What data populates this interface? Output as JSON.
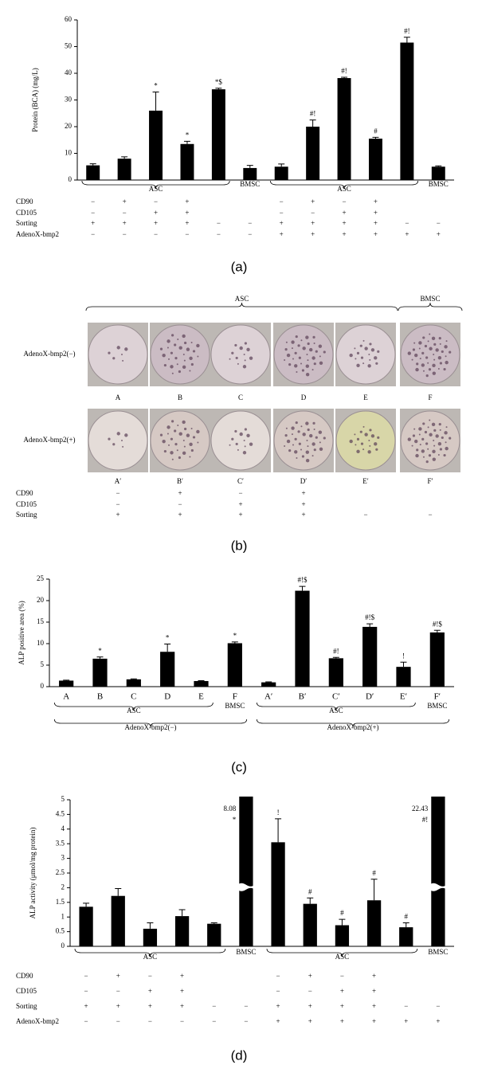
{
  "chart_data": [
    {
      "type": "bar",
      "y_label": "Protein (BCA) (mg/L)",
      "caption": "(a)",
      "categories": [
        null,
        null,
        null,
        null,
        null,
        null,
        null,
        null,
        null,
        null,
        null,
        null
      ],
      "values": [
        5.5,
        8,
        26,
        13.5,
        34,
        4.5,
        5,
        20,
        38.2,
        15.5,
        51.5,
        5
      ],
      "errors": [
        0.6,
        0.7,
        7,
        1,
        0.4,
        1,
        1,
        2.5,
        0.3,
        0.5,
        2,
        0.3
      ],
      "annotations": [
        null,
        null,
        "*",
        "*",
        "*$",
        null,
        null,
        "#!",
        "#!",
        "#",
        "#!",
        null
      ],
      "color": "#000000",
      "ylim": [
        0,
        60
      ],
      "yticks": [
        0,
        10,
        20,
        30,
        40,
        50,
        60
      ],
      "groups": [
        {
          "label": "ASC",
          "span": [
            0,
            4
          ]
        },
        {
          "label": "BMSC",
          "span": [
            5,
            5
          ]
        },
        {
          "label": "ASC",
          "span": [
            6,
            10
          ]
        },
        {
          "label": "BMSC",
          "span": [
            11,
            11
          ]
        }
      ],
      "conditions": [
        {
          "label": "CD90",
          "values": [
            "−",
            "+",
            "−",
            "+",
            null,
            null,
            "−",
            "+",
            "−",
            "+",
            null,
            null
          ]
        },
        {
          "label": "CD105",
          "values": [
            "−",
            "−",
            "+",
            "+",
            null,
            null,
            "−",
            "−",
            "+",
            "+",
            null,
            null
          ]
        },
        {
          "label": "Sorting",
          "values": [
            "+",
            "+",
            "+",
            "+",
            "−",
            "−",
            "+",
            "+",
            "+",
            "+",
            "−",
            "−"
          ]
        },
        {
          "label": "AdenoX-bmp2",
          "values": [
            "−",
            "−",
            "−",
            "−",
            "−",
            "−",
            "+",
            "+",
            "+",
            "+",
            "+",
            "+"
          ]
        }
      ]
    },
    {
      "type": "bar",
      "y_label": "ALP positive area (%)",
      "caption": "(c)",
      "categories": [
        "A",
        "B",
        "C",
        "D",
        "E",
        "F",
        "A′",
        "B′",
        "C′",
        "D′",
        "E′",
        "F′"
      ],
      "values": [
        1.4,
        6.5,
        1.7,
        8.1,
        1.3,
        10.1,
        1.0,
        22.3,
        6.6,
        13.9,
        4.6,
        12.6
      ],
      "errors": [
        0.1,
        0.4,
        0.1,
        1.8,
        0.1,
        0.3,
        0.1,
        1.0,
        0.2,
        0.7,
        1.1,
        0.5
      ],
      "annotations": [
        null,
        "*",
        null,
        "*",
        null,
        "*",
        null,
        "#!$",
        "#!",
        "#!$",
        "!",
        "#!$"
      ],
      "color": "#000000",
      "ylim": [
        0,
        25
      ],
      "yticks": [
        0,
        5,
        10,
        15,
        20,
        25
      ],
      "groups": [
        {
          "label": "ASC",
          "span": [
            0,
            4
          ]
        },
        {
          "label": "BMSC",
          "span": [
            5,
            5
          ]
        },
        {
          "label": "ASC",
          "span": [
            6,
            10
          ]
        },
        {
          "label": "BMSC",
          "span": [
            11,
            11
          ]
        }
      ],
      "supergroups": [
        {
          "label": "AdenoX-bmp2(−)",
          "span": [
            0,
            5
          ]
        },
        {
          "label": "AdenoX-bmp2(+)",
          "span": [
            6,
            11
          ]
        }
      ]
    },
    {
      "type": "bar",
      "y_label": "ALP activity (μmol/mg protein)",
      "caption": "(d)",
      "categories": [
        null,
        null,
        null,
        null,
        null,
        null,
        null,
        null,
        null,
        null,
        null,
        null
      ],
      "values": [
        1.35,
        1.72,
        0.6,
        1.03,
        0.77,
        8.08,
        3.55,
        1.45,
        0.72,
        1.57,
        0.65,
        22.43
      ],
      "value_labels": [
        null,
        null,
        null,
        null,
        null,
        "8.08",
        null,
        null,
        null,
        null,
        null,
        "22.43"
      ],
      "errors": [
        0.12,
        0.25,
        0.2,
        0.22,
        0.03,
        null,
        0.8,
        0.2,
        0.2,
        0.72,
        0.15,
        null
      ],
      "annotations": [
        null,
        null,
        null,
        null,
        null,
        "*",
        "!",
        "#",
        "#",
        "#",
        "#",
        "#!"
      ],
      "color": "#000000",
      "ylim": [
        0,
        5
      ],
      "yticks": [
        0,
        0.5,
        1,
        1.5,
        2,
        2.5,
        3,
        3.5,
        4,
        4.5,
        5
      ],
      "groups": [
        {
          "label": "ASC",
          "span": [
            0,
            4
          ]
        },
        {
          "label": "BMSC",
          "span": [
            5,
            5
          ]
        },
        {
          "label": "ASC",
          "span": [
            6,
            10
          ]
        },
        {
          "label": "BMSC",
          "span": [
            11,
            11
          ]
        }
      ],
      "conditions": [
        {
          "label": "CD90",
          "values": [
            "−",
            "+",
            "−",
            "+",
            null,
            null,
            "−",
            "+",
            "−",
            "+",
            null,
            null
          ]
        },
        {
          "label": "CD105",
          "values": [
            "−",
            "−",
            "+",
            "+",
            null,
            null,
            "−",
            "−",
            "+",
            "+",
            null,
            null
          ]
        },
        {
          "label": "Sorting",
          "values": [
            "+",
            "+",
            "+",
            "+",
            "−",
            "−",
            "+",
            "+",
            "+",
            "+",
            "−",
            "−"
          ]
        },
        {
          "label": "AdenoX-bmp2",
          "values": [
            "−",
            "−",
            "−",
            "−",
            "−",
            "−",
            "+",
            "+",
            "+",
            "+",
            "+",
            "+"
          ]
        }
      ]
    }
  ],
  "panel_b": {
    "caption": "(b)",
    "groups": [
      {
        "label": "ASC",
        "span": [
          0,
          4
        ]
      },
      {
        "label": "BMSC",
        "span": [
          5,
          5
        ]
      }
    ],
    "rows": [
      {
        "label": "AdenoX-bmp2(−)",
        "wells": [
          "A",
          "B",
          "C",
          "D",
          "E",
          "F"
        ]
      },
      {
        "label": "AdenoX-bmp2(+)",
        "wells": [
          "A′",
          "B′",
          "C′",
          "D′",
          "E′",
          "F′"
        ]
      }
    ],
    "conditions": [
      {
        "label": "CD90",
        "values": [
          "−",
          "+",
          "−",
          "+",
          null,
          null
        ]
      },
      {
        "label": "CD105",
        "values": [
          "−",
          "−",
          "+",
          "+",
          null,
          null
        ]
      },
      {
        "label": "Sorting",
        "values": [
          "+",
          "+",
          "+",
          "+",
          "−",
          "−"
        ]
      }
    ]
  }
}
